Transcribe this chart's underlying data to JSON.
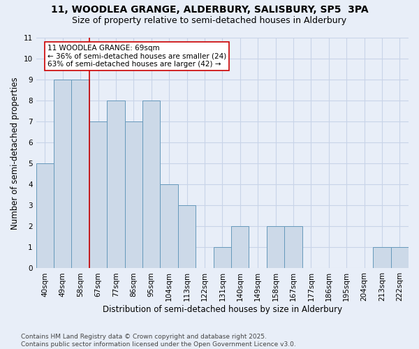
{
  "title": "11, WOODLEA GRANGE, ALDERBURY, SALISBURY, SP5  3PA",
  "subtitle": "Size of property relative to semi-detached houses in Alderbury",
  "xlabel": "Distribution of semi-detached houses by size in Alderbury",
  "ylabel": "Number of semi-detached properties",
  "categories": [
    "40sqm",
    "49sqm",
    "58sqm",
    "67sqm",
    "77sqm",
    "86sqm",
    "95sqm",
    "104sqm",
    "113sqm",
    "122sqm",
    "131sqm",
    "140sqm",
    "149sqm",
    "158sqm",
    "167sqm",
    "177sqm",
    "186sqm",
    "195sqm",
    "204sqm",
    "213sqm",
    "222sqm"
  ],
  "values": [
    5,
    9,
    9,
    7,
    8,
    7,
    8,
    4,
    3,
    0,
    1,
    2,
    0,
    2,
    2,
    0,
    0,
    0,
    0,
    1,
    1
  ],
  "bar_color": "#ccd9e8",
  "bar_edge_color": "#6699bb",
  "line_color": "#cc0000",
  "line_x_index": 3,
  "annotation_line1": "11 WOODLEA GRANGE: 69sqm",
  "annotation_line2": "← 36% of semi-detached houses are smaller (24)",
  "annotation_line3": "63% of semi-detached houses are larger (42) →",
  "annotation_box_color": "#ffffff",
  "annotation_box_edge_color": "#cc0000",
  "ylim": [
    0,
    11
  ],
  "background_color": "#e8eef8",
  "grid_color": "#c8d4e8",
  "footer_text": "Contains HM Land Registry data © Crown copyright and database right 2025.\nContains public sector information licensed under the Open Government Licence v3.0.",
  "title_fontsize": 10,
  "subtitle_fontsize": 9,
  "xlabel_fontsize": 8.5,
  "ylabel_fontsize": 8.5,
  "tick_fontsize": 7.5,
  "annotation_fontsize": 7.5,
  "footer_fontsize": 6.5
}
